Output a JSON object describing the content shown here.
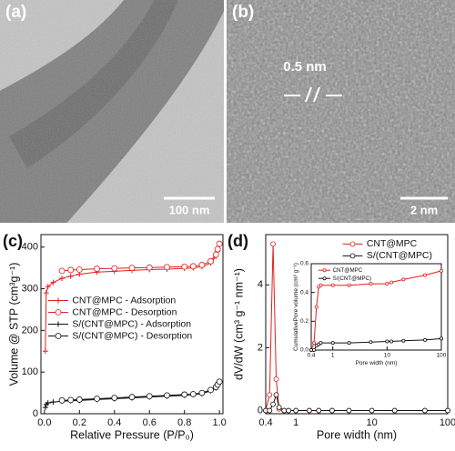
{
  "images": [
    {
      "label": "(a)",
      "scale": "100 nm"
    },
    {
      "label": "(b)",
      "annotation": "0.5 nm",
      "scale": "2 nm"
    }
  ],
  "chart_data": [
    {
      "type": "line",
      "panel_label": "(c)",
      "xlabel": "Relative Pressure (P/P₀)",
      "ylabel": "Volume @ STP (cm³g⁻¹)",
      "x": [
        0.005,
        0.01,
        0.02,
        0.05,
        0.1,
        0.15,
        0.2,
        0.3,
        0.4,
        0.5,
        0.6,
        0.7,
        0.8,
        0.85,
        0.9,
        0.95,
        0.98,
        0.99,
        1.0
      ],
      "xlim": [
        -0.02,
        1.02
      ],
      "xticks": [
        {
          "value": 0,
          "label": "0.0"
        },
        0.2,
        0.4,
        0.6,
        0.8,
        {
          "value": 1,
          "label": "1.0"
        }
      ],
      "ylim": [
        0,
        430
      ],
      "yticks": [
        0,
        100,
        200,
        300,
        400
      ],
      "legend": "center left",
      "series": [
        {
          "name": "CNT@MPC - Adsorption",
          "color": "#e02020",
          "marker": "plus",
          "values": [
            150,
            290,
            305,
            315,
            325,
            330,
            335,
            340,
            342,
            344,
            346,
            347,
            349,
            350,
            353,
            362,
            378,
            390,
            405
          ]
        },
        {
          "name": "CNT@MPC - Desorption",
          "color": "#e02020",
          "marker": "circle",
          "values": [
            null,
            null,
            null,
            null,
            343,
            345,
            346,
            348,
            349,
            350,
            351,
            352,
            353,
            354,
            357,
            366,
            382,
            395,
            408
          ]
        },
        {
          "name": "S/(CNT@MPC) - Adsorption",
          "color": "#111111",
          "marker": "plus",
          "values": [
            15,
            22,
            26,
            28,
            30,
            31,
            32,
            34,
            36,
            38,
            40,
            42,
            44,
            46,
            48,
            55,
            62,
            68,
            75
          ]
        },
        {
          "name": "S/(CNT@MPC) - Desorption",
          "color": "#111111",
          "marker": "circle",
          "values": [
            null,
            null,
            null,
            null,
            32,
            33,
            34,
            36,
            38,
            40,
            42,
            44,
            46,
            47,
            50,
            57,
            64,
            70,
            77
          ]
        }
      ]
    },
    {
      "type": "line",
      "panel_label": "(d)",
      "xlabel": "Pore width (nm)",
      "ylabel": "dV/dW (cm³ g⁻¹ nm⁻¹)",
      "log_x": true,
      "x": [
        0.4,
        0.45,
        0.5,
        0.55,
        0.6,
        0.7,
        0.8,
        1,
        1.5,
        2,
        3,
        5,
        10,
        20,
        50,
        100
      ],
      "xlim": [
        0.4,
        100
      ],
      "xticks": [
        0.4,
        1,
        10,
        100
      ],
      "ylim": [
        -0.1,
        5.6
      ],
      "yticks": [
        0,
        2,
        4
      ],
      "legend": "upper right",
      "series": [
        {
          "name": "CNT@MPC",
          "color": "#e02020",
          "marker": "circle",
          "values": [
            0,
            0.5,
            5.3,
            1.0,
            0.05,
            0,
            0,
            0,
            0,
            0,
            0,
            0,
            0,
            0,
            0,
            0
          ]
        },
        {
          "name": "S/(CNT@MPC)",
          "color": "#111111",
          "marker": "circle",
          "values": [
            0,
            0,
            0.2,
            0.5,
            0.1,
            0,
            0,
            0,
            0,
            0,
            0,
            0,
            0,
            0,
            0,
            0
          ]
        }
      ]
    },
    {
      "type": "line",
      "xlabel": "Pore width (nm)",
      "ylabel": "CumulativePore volume (cm³ g⁻¹)",
      "log_x": true,
      "x": [
        0.4,
        0.45,
        0.5,
        0.55,
        0.6,
        1,
        2,
        5,
        10,
        12,
        20,
        50,
        100
      ],
      "xlim": [
        0.4,
        100
      ],
      "xticks": [
        0.4,
        1,
        10,
        100
      ],
      "ylim": [
        0,
        0.6
      ],
      "yticks": [
        {
          "value": 0,
          "label": "0.0"
        },
        0.2,
        0.4,
        0.6
      ],
      "legend": "upper left",
      "series": [
        {
          "name": "CNT@MPC",
          "color": "#e02020",
          "marker": "circle",
          "values": [
            0,
            0.05,
            0.3,
            0.44,
            0.45,
            0.45,
            0.45,
            0.46,
            0.46,
            0.47,
            0.49,
            0.52,
            0.55
          ]
        },
        {
          "name": "S/(CNT@MPC)",
          "color": "#111111",
          "marker": "circle",
          "values": [
            0,
            0,
            0.03,
            0.04,
            0.05,
            0.05,
            0.05,
            0.055,
            0.06,
            0.06,
            0.065,
            0.07,
            0.08
          ]
        }
      ]
    }
  ]
}
